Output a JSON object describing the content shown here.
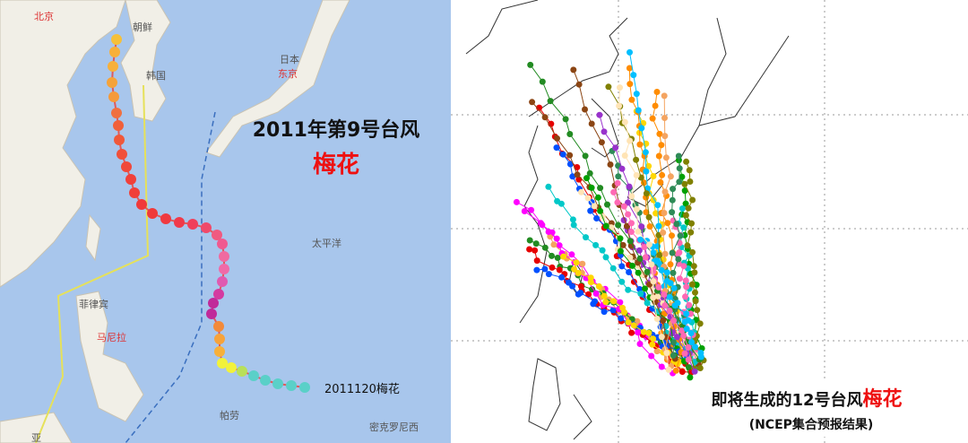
{
  "left_panel": {
    "title": "2011年第9号台风",
    "name": "梅花",
    "track_label": "2011120梅花",
    "places": {
      "beijing": "北京",
      "north_korea": "朝鲜",
      "south_korea": "韩国",
      "japan": "日本",
      "tokyo": "东京",
      "pacific": "太平洋",
      "philippines": "菲律宾",
      "manila": "马尼拉",
      "palau": "帕劳",
      "micronesia": "密克罗尼西",
      "asia": "亚"
    }
  },
  "right_panel": {
    "title": "即将生成的12号台风",
    "name": "梅花",
    "subtitle": "(NCEP集合预报结果)"
  }
}
